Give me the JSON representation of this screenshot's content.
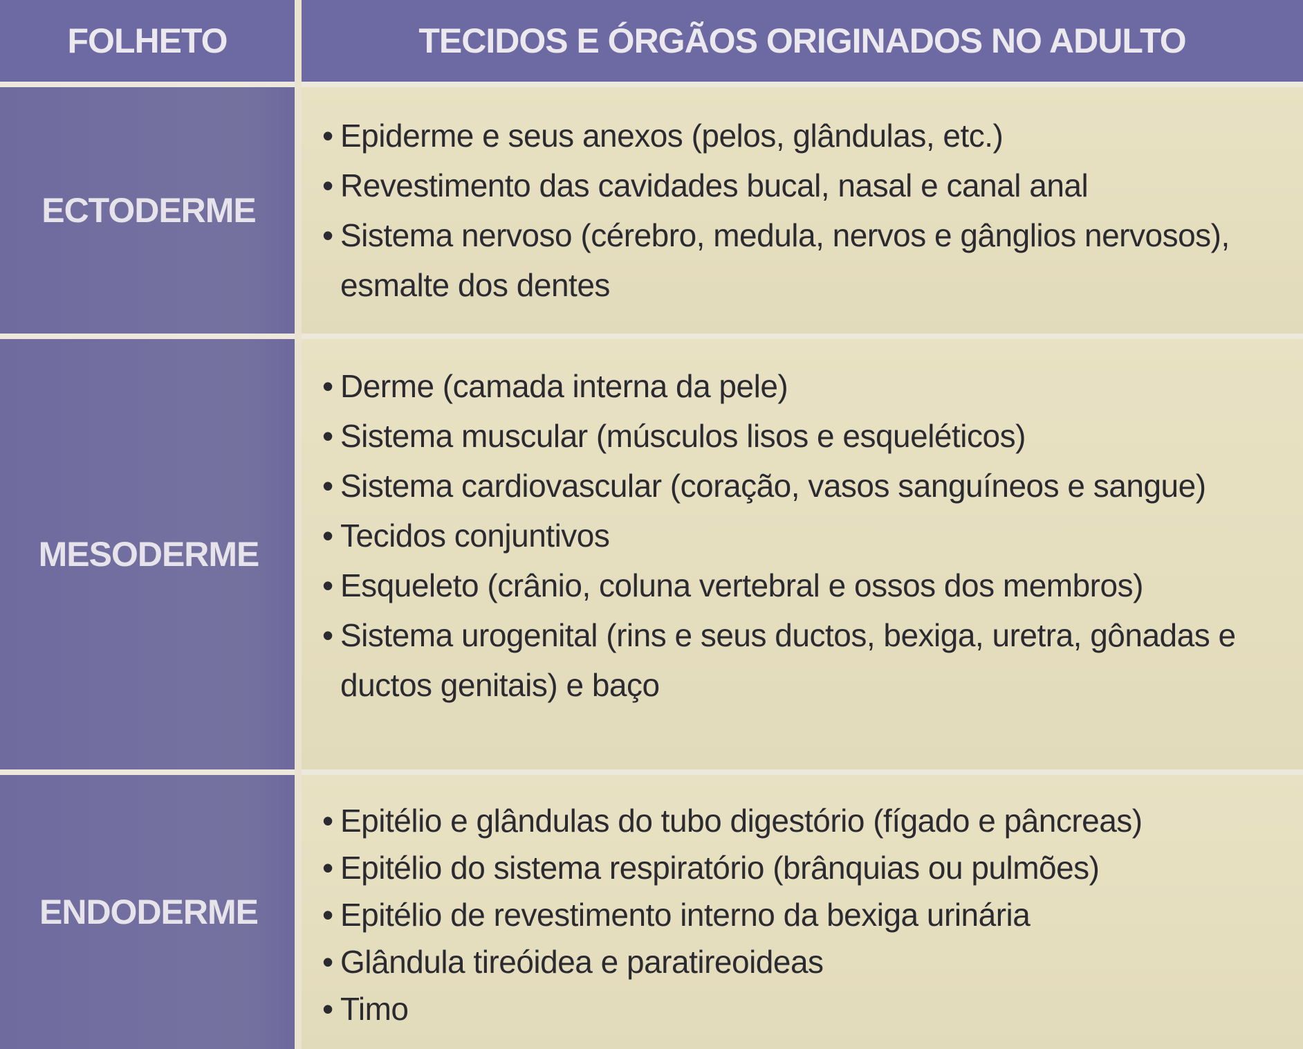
{
  "header": {
    "col1": "FOLHETO",
    "col2": "TECIDOS E ÓRGÃOS ORIGINADOS NO ADULTO"
  },
  "rows": [
    {
      "label": "ECTODERME",
      "items": [
        "Epiderme e seus anexos (pelos, glândulas, etc.)",
        "Revestimento das cavidades bucal, nasal e canal anal",
        "Sistema nervoso (cérebro, medula, nervos e gânglios nervosos), esmalte dos dentes"
      ]
    },
    {
      "label": "MESODERME",
      "items": [
        "Derme (camada interna da pele)",
        "Sistema muscular (músculos lisos e esqueléticos)",
        "Sistema cardiovascular (coração, vasos sanguíneos e sangue)",
        "Tecidos conjuntivos",
        "Esqueleto (crânio, coluna vertebral e ossos dos membros)",
        "Sistema urogenital (rins e seus ductos, bexiga, uretra, gônadas e ductos genitais) e baço"
      ]
    },
    {
      "label": "ENDODERME",
      "items": [
        "Epitélio e glândulas do tubo digestório (fígado e pâncreas)",
        "Epitélio do sistema respiratório (brânquias ou pulmões)",
        "Epitélio de revestimento interno da bexiga urinária",
        "Glândula tireóidea e paratireoideas",
        "Timo"
      ]
    }
  ]
}
